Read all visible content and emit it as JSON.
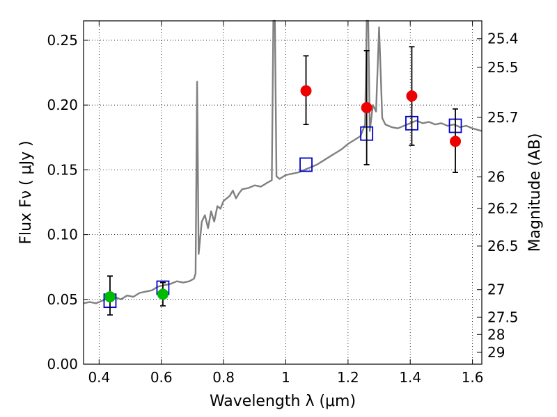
{
  "chart_data": {
    "type": "scatter",
    "xlabel": "Wavelength  λ (μm)",
    "ylabel": "Flux  Fν  ( μJy )",
    "ylabel_right": "Magnitude (AB)",
    "xlim": [
      0.35,
      1.63
    ],
    "ylim": [
      0.0,
      0.265
    ],
    "grid": true,
    "x_ticks": [
      {
        "value": 0.4,
        "label": "0.4"
      },
      {
        "value": 0.6,
        "label": "0.6"
      },
      {
        "value": 0.8,
        "label": "0.8"
      },
      {
        "value": 1.0,
        "label": "1"
      },
      {
        "value": 1.2,
        "label": "1.2"
      },
      {
        "value": 1.4,
        "label": "1.4"
      },
      {
        "value": 1.6,
        "label": "1.6"
      }
    ],
    "y_ticks": [
      {
        "value": 0.0,
        "label": "0.00"
      },
      {
        "value": 0.05,
        "label": "0.05"
      },
      {
        "value": 0.1,
        "label": "0.10"
      },
      {
        "value": 0.15,
        "label": "0.15"
      },
      {
        "value": 0.2,
        "label": "0.20"
      },
      {
        "value": 0.25,
        "label": "0.25"
      }
    ],
    "right_ticks": [
      {
        "value": 25.4,
        "label": "25.4"
      },
      {
        "value": 25.5,
        "label": "25.5"
      },
      {
        "value": 25.7,
        "label": "25.7"
      },
      {
        "value": 26.0,
        "label": "26"
      },
      {
        "value": 26.2,
        "label": "26.2"
      },
      {
        "value": 26.5,
        "label": "26.5"
      },
      {
        "value": 27.0,
        "label": "27"
      },
      {
        "value": 27.5,
        "label": "27.5"
      },
      {
        "value": 28.0,
        "label": "28"
      },
      {
        "value": 29.0,
        "label": "29"
      }
    ],
    "series": [
      {
        "kind": "spectrum",
        "color": "#808080",
        "points": [
          [
            0.35,
            0.047
          ],
          [
            0.37,
            0.048
          ],
          [
            0.39,
            0.047
          ],
          [
            0.41,
            0.049
          ],
          [
            0.43,
            0.051
          ],
          [
            0.45,
            0.052
          ],
          [
            0.47,
            0.05
          ],
          [
            0.49,
            0.053
          ],
          [
            0.51,
            0.052
          ],
          [
            0.53,
            0.055
          ],
          [
            0.55,
            0.056
          ],
          [
            0.57,
            0.057
          ],
          [
            0.59,
            0.06
          ],
          [
            0.61,
            0.061
          ],
          [
            0.63,
            0.062
          ],
          [
            0.65,
            0.064
          ],
          [
            0.67,
            0.063
          ],
          [
            0.69,
            0.064
          ],
          [
            0.705,
            0.066
          ],
          [
            0.71,
            0.07
          ],
          [
            0.715,
            0.218
          ],
          [
            0.72,
            0.085
          ],
          [
            0.73,
            0.11
          ],
          [
            0.74,
            0.115
          ],
          [
            0.75,
            0.105
          ],
          [
            0.76,
            0.118
          ],
          [
            0.77,
            0.11
          ],
          [
            0.78,
            0.122
          ],
          [
            0.79,
            0.12
          ],
          [
            0.8,
            0.126
          ],
          [
            0.81,
            0.128
          ],
          [
            0.82,
            0.13
          ],
          [
            0.83,
            0.134
          ],
          [
            0.84,
            0.128
          ],
          [
            0.85,
            0.132
          ],
          [
            0.86,
            0.135
          ],
          [
            0.88,
            0.136
          ],
          [
            0.9,
            0.138
          ],
          [
            0.92,
            0.137
          ],
          [
            0.94,
            0.14
          ],
          [
            0.955,
            0.142
          ],
          [
            0.96,
            0.265
          ],
          [
            0.965,
            0.265
          ],
          [
            0.97,
            0.145
          ],
          [
            0.98,
            0.143
          ],
          [
            1.0,
            0.146
          ],
          [
            1.02,
            0.147
          ],
          [
            1.04,
            0.148
          ],
          [
            1.06,
            0.15
          ],
          [
            1.08,
            0.152
          ],
          [
            1.1,
            0.154
          ],
          [
            1.12,
            0.157
          ],
          [
            1.14,
            0.16
          ],
          [
            1.16,
            0.163
          ],
          [
            1.18,
            0.166
          ],
          [
            1.2,
            0.17
          ],
          [
            1.22,
            0.173
          ],
          [
            1.24,
            0.176
          ],
          [
            1.255,
            0.185
          ],
          [
            1.26,
            0.265
          ],
          [
            1.265,
            0.265
          ],
          [
            1.27,
            0.18
          ],
          [
            1.28,
            0.2
          ],
          [
            1.29,
            0.195
          ],
          [
            1.3,
            0.26
          ],
          [
            1.31,
            0.19
          ],
          [
            1.32,
            0.185
          ],
          [
            1.34,
            0.183
          ],
          [
            1.36,
            0.182
          ],
          [
            1.38,
            0.184
          ],
          [
            1.4,
            0.186
          ],
          [
            1.42,
            0.188
          ],
          [
            1.44,
            0.186
          ],
          [
            1.46,
            0.187
          ],
          [
            1.48,
            0.185
          ],
          [
            1.5,
            0.186
          ],
          [
            1.52,
            0.184
          ],
          [
            1.54,
            0.185
          ],
          [
            1.56,
            0.183
          ],
          [
            1.58,
            0.184
          ],
          [
            1.6,
            0.182
          ],
          [
            1.63,
            0.18
          ]
        ]
      },
      {
        "kind": "model-squares",
        "color": "#0000cc",
        "points": [
          [
            0.435,
            0.049
          ],
          [
            0.605,
            0.059
          ],
          [
            1.065,
            0.154
          ],
          [
            1.26,
            0.178
          ],
          [
            1.405,
            0.186
          ],
          [
            1.545,
            0.184
          ]
        ]
      },
      {
        "kind": "observed-optical",
        "color": "#00bb00",
        "points": [
          {
            "x": 0.435,
            "y": 0.052,
            "ylo": 0.038,
            "yhi": 0.068
          },
          {
            "x": 0.605,
            "y": 0.054,
            "ylo": 0.045,
            "yhi": 0.063
          }
        ]
      },
      {
        "kind": "observed-nir",
        "color": "#ee0000",
        "points": [
          {
            "x": 1.065,
            "y": 0.211,
            "ylo": 0.185,
            "yhi": 0.238
          },
          {
            "x": 1.26,
            "y": 0.198,
            "ylo": 0.154,
            "yhi": 0.242
          },
          {
            "x": 1.405,
            "y": 0.207,
            "ylo": 0.169,
            "yhi": 0.245
          },
          {
            "x": 1.545,
            "y": 0.172,
            "ylo": 0.148,
            "yhi": 0.197
          }
        ]
      }
    ]
  }
}
